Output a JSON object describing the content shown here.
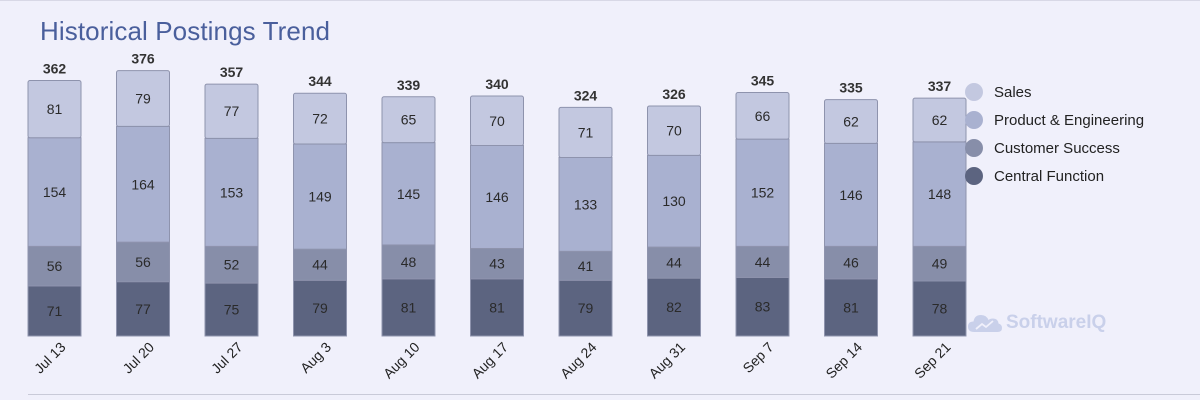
{
  "title": "Historical Postings Trend",
  "watermark": "SoftwareIQ",
  "chart_data": {
    "type": "bar",
    "stacked": true,
    "title": "Historical Postings Trend",
    "categories": [
      "Jul 13",
      "Jul 20",
      "Jul 27",
      "Aug 3",
      "Aug 10",
      "Aug 17",
      "Aug 24",
      "Aug 31",
      "Sep 7",
      "Sep 14",
      "Sep 21"
    ],
    "series": [
      {
        "name": "Central Function",
        "color": "#5c6480",
        "values": [
          71,
          77,
          75,
          79,
          81,
          81,
          79,
          82,
          83,
          81,
          78
        ]
      },
      {
        "name": "Customer Success",
        "color": "#878ea9",
        "values": [
          56,
          56,
          52,
          44,
          48,
          43,
          41,
          44,
          44,
          46,
          49
        ]
      },
      {
        "name": "Product & Engineering",
        "color": "#a9b1d0",
        "values": [
          154,
          164,
          153,
          149,
          145,
          146,
          133,
          130,
          152,
          146,
          148
        ]
      },
      {
        "name": "Sales",
        "color": "#c3c8e0",
        "values": [
          81,
          79,
          77,
          72,
          65,
          70,
          71,
          70,
          66,
          62,
          62
        ]
      }
    ],
    "totals": [
      362,
      376,
      357,
      344,
      339,
      340,
      324,
      326,
      345,
      335,
      337
    ],
    "legend_order": [
      "Sales",
      "Product & Engineering",
      "Customer Success",
      "Central Function"
    ],
    "legend_position": "right",
    "grid": false
  }
}
